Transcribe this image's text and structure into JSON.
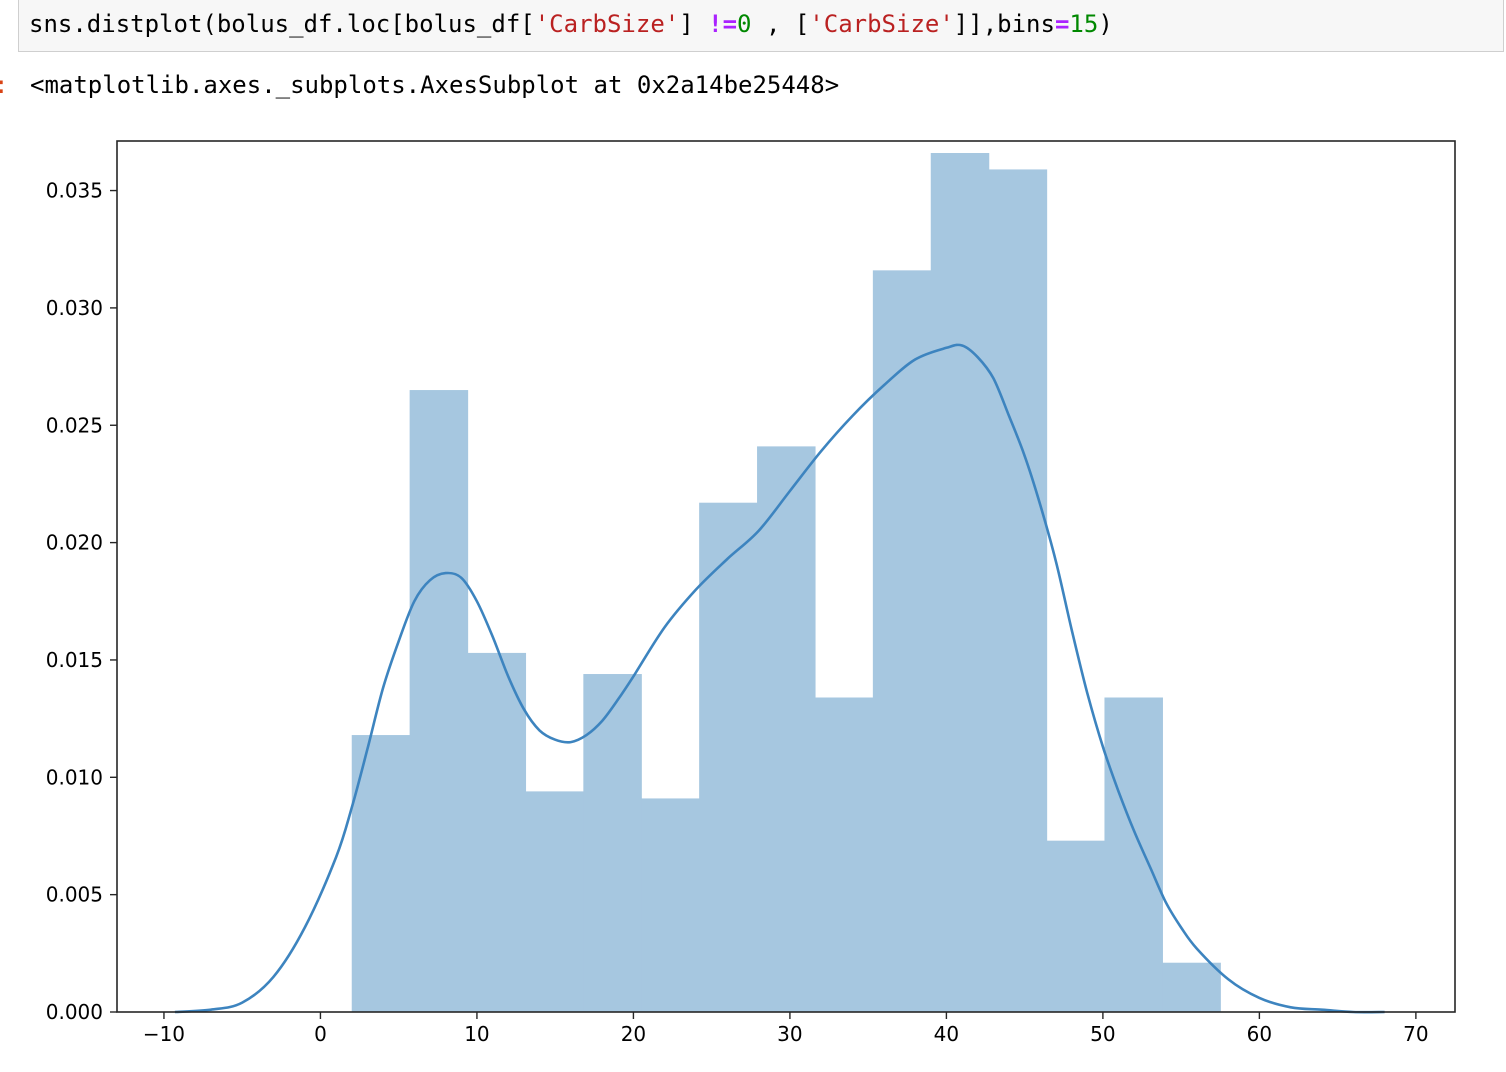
{
  "code": {
    "tokens": [
      {
        "text": "sns.distplot(bolus_df.loc[bolus_df[",
        "cls": ""
      },
      {
        "text": "'CarbSize'",
        "cls": "tok-str"
      },
      {
        "text": "] ",
        "cls": ""
      },
      {
        "text": "!=",
        "cls": "tok-op"
      },
      {
        "text": "0",
        "cls": "tok-num"
      },
      {
        "text": " , [",
        "cls": ""
      },
      {
        "text": "'CarbSize'",
        "cls": "tok-str"
      },
      {
        "text": "]],bins",
        "cls": ""
      },
      {
        "text": "=",
        "cls": "tok-op"
      },
      {
        "text": "15",
        "cls": "tok-num"
      },
      {
        "text": ")",
        "cls": ""
      }
    ]
  },
  "output": {
    "prompt": ":",
    "text": "<matplotlib.axes._subplots.AxesSubplot at 0x2a14be25448>"
  },
  "chart_data": {
    "type": "bar",
    "subtype": "histogram-with-kde",
    "title": "",
    "xlabel": "",
    "ylabel": "",
    "xlim": [
      -13,
      72.5
    ],
    "ylim": [
      0,
      0.0366
    ],
    "xticks": [
      -10,
      0,
      10,
      20,
      30,
      40,
      50,
      60,
      70
    ],
    "xtick_labels": [
      "−10",
      "0",
      "10",
      "20",
      "30",
      "40",
      "50",
      "60",
      "70"
    ],
    "yticks": [
      0,
      0.005,
      0.01,
      0.015,
      0.02,
      0.025,
      0.03,
      0.035
    ],
    "ytick_labels": [
      "0.000",
      "0.005",
      "0.010",
      "0.015",
      "0.020",
      "0.025",
      "0.030",
      "0.035"
    ],
    "grid": false,
    "bar_color": "#a6c7e0",
    "line_color": "#3d84bf",
    "bins": [
      {
        "x0": 2.0,
        "x1": 5.7,
        "density": 0.0118
      },
      {
        "x0": 5.7,
        "x1": 9.4,
        "density": 0.0265
      },
      {
        "x0": 9.4,
        "x1": 13.1,
        "density": 0.0153
      },
      {
        "x0": 13.1,
        "x1": 16.8,
        "density": 0.0094
      },
      {
        "x0": 16.8,
        "x1": 20.5,
        "density": 0.0144
      },
      {
        "x0": 20.5,
        "x1": 24.2,
        "density": 0.0091
      },
      {
        "x0": 24.2,
        "x1": 27.9,
        "density": 0.0217
      },
      {
        "x0": 27.9,
        "x1": 31.6,
        "density": 0.0241
      },
      {
        "x0": 31.6,
        "x1": 35.3,
        "density": 0.0134
      },
      {
        "x0": 35.3,
        "x1": 39.0,
        "density": 0.0316
      },
      {
        "x0": 39.0,
        "x1": 42.7,
        "density": 0.0366
      },
      {
        "x0": 42.7,
        "x1": 46.4,
        "density": 0.0359
      },
      {
        "x0": 46.4,
        "x1": 50.1,
        "density": 0.0073
      },
      {
        "x0": 50.1,
        "x1": 53.8,
        "density": 0.0134
      },
      {
        "x0": 53.8,
        "x1": 57.5,
        "density": 0.0021
      }
    ],
    "kde": {
      "x": [
        -9.3,
        -7,
        -5,
        -3,
        -1,
        1,
        2,
        3,
        4,
        5,
        6,
        7,
        8,
        9,
        10,
        11,
        12,
        13,
        14,
        15,
        16,
        17,
        18,
        19,
        20,
        22,
        24,
        26,
        28,
        30,
        32,
        34,
        36,
        38,
        40,
        41,
        42,
        43,
        44,
        45,
        46,
        47,
        48,
        49,
        50,
        51,
        52,
        53,
        54,
        55,
        56,
        58,
        60,
        62,
        64,
        66,
        68
      ],
      "y": [
        0.0,
        0.0001,
        0.0004,
        0.0015,
        0.0036,
        0.0066,
        0.0087,
        0.0112,
        0.0138,
        0.0158,
        0.0175,
        0.0184,
        0.0187,
        0.0185,
        0.0175,
        0.016,
        0.0143,
        0.0129,
        0.012,
        0.0116,
        0.0115,
        0.0118,
        0.0124,
        0.0133,
        0.0143,
        0.0164,
        0.018,
        0.0193,
        0.0205,
        0.0222,
        0.0239,
        0.0254,
        0.0267,
        0.0278,
        0.0283,
        0.0284,
        0.0279,
        0.027,
        0.0254,
        0.0237,
        0.0216,
        0.0192,
        0.0163,
        0.0136,
        0.0113,
        0.0094,
        0.0077,
        0.0062,
        0.0047,
        0.0036,
        0.0027,
        0.0014,
        0.0006,
        0.0002,
        0.0001,
        0.0,
        0.0
      ]
    }
  }
}
